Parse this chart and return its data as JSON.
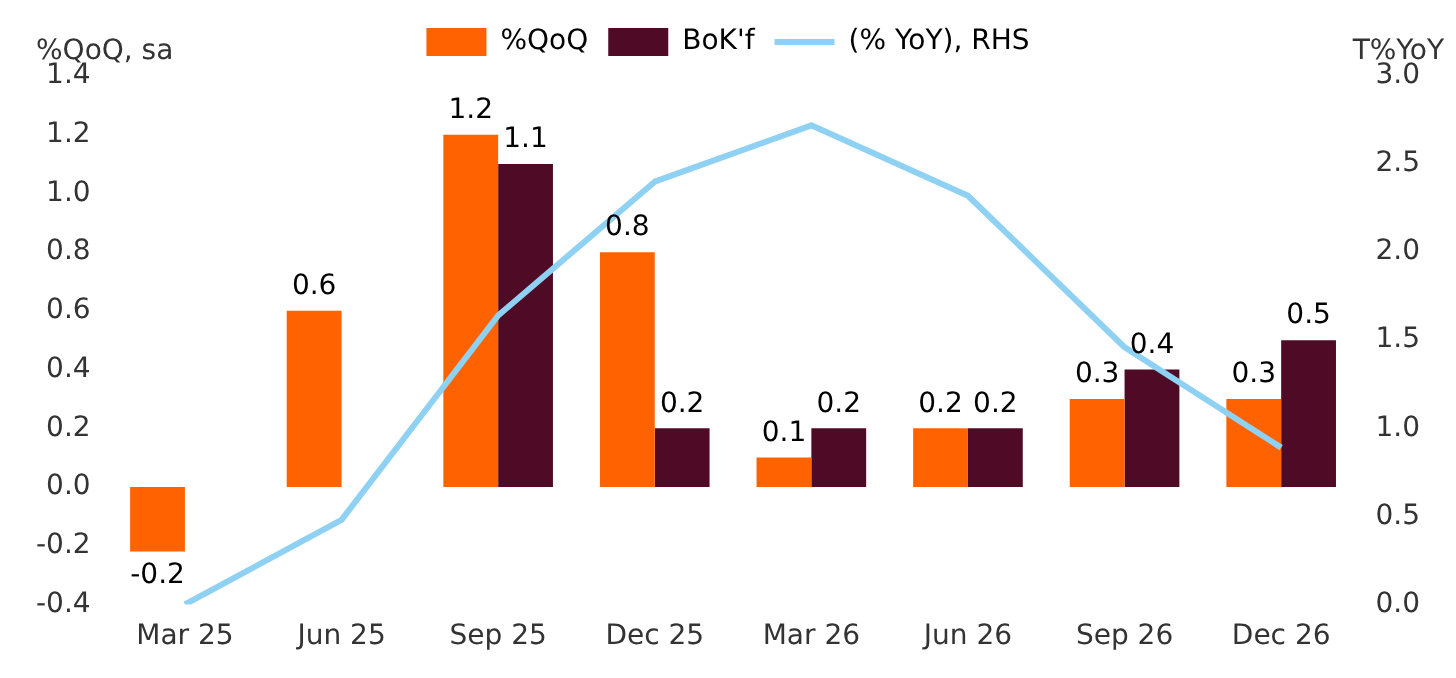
{
  "chart_data": {
    "type": "bar",
    "ylabel": "%QoQ, sa",
    "y2label": "T%YoY",
    "categories": [
      "Mar 25",
      "Jun 25",
      "Sep 25",
      "Dec 25",
      "Mar 26",
      "Jun 26",
      "Sep 26",
      "Dec 26"
    ],
    "series": [
      {
        "name": "%QoQ",
        "color": "#ff6200",
        "values": [
          -0.22,
          0.6,
          1.2,
          0.8,
          0.1,
          0.2,
          0.3,
          0.3
        ],
        "value_labels": [
          "-0.2",
          "0.6",
          "1.2",
          "0.8",
          "0.1",
          "0.2",
          "0.3",
          "0.3"
        ]
      },
      {
        "name": "BoK'f",
        "color": "#4f0a26",
        "values": [
          null,
          null,
          1.1,
          0.2,
          0.2,
          0.2,
          0.4,
          0.5
        ],
        "value_labels": [
          null,
          null,
          "1.1",
          "0.2",
          "0.2",
          "0.2",
          "0.4",
          "0.5"
        ]
      },
      {
        "name": "(% YoY), RHS",
        "type": "line",
        "axis": "y2",
        "color": "#8fd1f2",
        "values": [
          0.0,
          0.48,
          1.64,
          2.4,
          2.72,
          2.32,
          1.46,
          0.89
        ]
      }
    ],
    "ylim": [
      -0.4,
      1.4
    ],
    "yticks": [
      -0.4,
      -0.2,
      {
        "value": 0,
        "label": "0.0"
      },
      0.2,
      0.4,
      0.6,
      0.8,
      {
        "value": 1,
        "label": "1.0"
      },
      1.2,
      1.4
    ],
    "y2lim": [
      0.0,
      3.0
    ],
    "y2ticks": [
      {
        "value": 0,
        "label": "0.0"
      },
      0.5,
      {
        "value": 1,
        "label": "1.0"
      },
      1.5,
      {
        "value": 2,
        "label": "2.0"
      },
      2.5,
      {
        "value": 3,
        "label": "3.0"
      }
    ],
    "legend": "top",
    "grid": false
  }
}
